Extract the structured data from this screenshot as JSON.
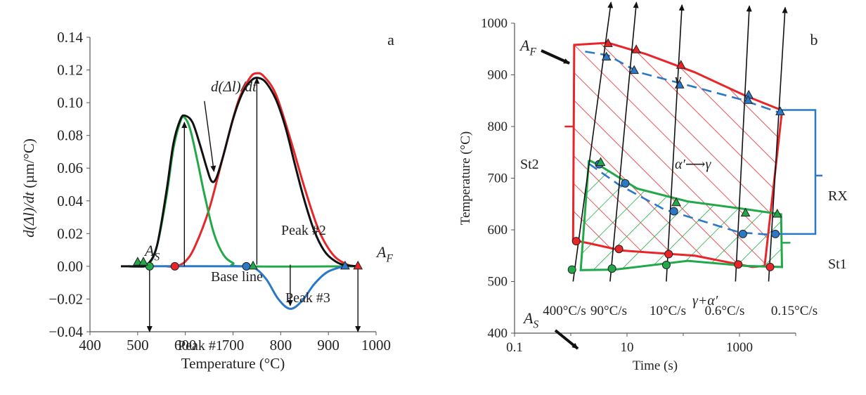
{
  "chart_data": [
    {
      "panel_label": "a",
      "type": "line",
      "xlabel": "Temperature (°C)",
      "ylabel": "d(Δl)/dt (µm/°C)",
      "xlim": [
        400,
        1000
      ],
      "ylim": [
        -0.04,
        0.14
      ],
      "xticks": [
        "400",
        "500",
        "600",
        "700",
        "800",
        "900",
        "1000"
      ],
      "yticks": [
        "−0.04",
        "−0.02",
        "0.00",
        "0.02",
        "0.04",
        "0.06",
        "0.08",
        "0.10",
        "0.12",
        "0.14"
      ],
      "series": [
        {
          "name": "d(Δl)/dt",
          "color": "#111111",
          "points": [
            [
              480,
              0
            ],
            [
              500,
              0
            ],
            [
              520,
              0.001
            ],
            [
              540,
              0.012
            ],
            [
              560,
              0.045
            ],
            [
              575,
              0.075
            ],
            [
              590,
              0.09
            ],
            [
              600,
              0.092
            ],
            [
              615,
              0.088
            ],
            [
              630,
              0.075
            ],
            [
              645,
              0.06
            ],
            [
              655,
              0.052
            ],
            [
              665,
              0.054
            ],
            [
              680,
              0.068
            ],
            [
              700,
              0.09
            ],
            [
              720,
              0.106
            ],
            [
              740,
              0.114
            ],
            [
              755,
              0.115
            ],
            [
              770,
              0.112
            ],
            [
              790,
              0.102
            ],
            [
              810,
              0.085
            ],
            [
              830,
              0.062
            ],
            [
              850,
              0.04
            ],
            [
              870,
              0.022
            ],
            [
              890,
              0.01
            ],
            [
              910,
              0.004
            ],
            [
              930,
              0.001
            ],
            [
              960,
              0
            ]
          ]
        },
        {
          "name": "Peak #1",
          "color": "#22a84a",
          "points": [
            [
              480,
              0
            ],
            [
              520,
              0.001
            ],
            [
              540,
              0.012
            ],
            [
              560,
              0.042
            ],
            [
              575,
              0.072
            ],
            [
              590,
              0.089
            ],
            [
              598,
              0.091
            ],
            [
              610,
              0.084
            ],
            [
              625,
              0.065
            ],
            [
              640,
              0.044
            ],
            [
              660,
              0.02
            ],
            [
              680,
              0.007
            ],
            [
              700,
              0.002
            ],
            [
              720,
              0
            ],
            [
              960,
              0
            ]
          ]
        },
        {
          "name": "Peak #2",
          "color": "#e8262a",
          "points": [
            [
              560,
              0
            ],
            [
              580,
              0
            ],
            [
              600,
              0.003
            ],
            [
              620,
              0.012
            ],
            [
              650,
              0.035
            ],
            [
              680,
              0.068
            ],
            [
              710,
              0.1
            ],
            [
              735,
              0.115
            ],
            [
              750,
              0.118
            ],
            [
              765,
              0.116
            ],
            [
              790,
              0.105
            ],
            [
              820,
              0.078
            ],
            [
              850,
              0.048
            ],
            [
              880,
              0.022
            ],
            [
              910,
              0.007
            ],
            [
              940,
              0.001
            ],
            [
              960,
              0
            ]
          ]
        },
        {
          "name": "Peak #3",
          "color": "#2a78c6",
          "points": [
            [
              480,
              0
            ],
            [
              720,
              0
            ],
            [
              745,
              -0.001
            ],
            [
              770,
              -0.008
            ],
            [
              795,
              -0.02
            ],
            [
              820,
              -0.026
            ],
            [
              845,
              -0.021
            ],
            [
              870,
              -0.011
            ],
            [
              895,
              -0.004
            ],
            [
              920,
              -0.001
            ],
            [
              940,
              0
            ]
          ]
        }
      ],
      "markers": [
        {
          "label": "As-circle",
          "x": 525,
          "y": 0,
          "shape": "circle",
          "color": "#22a84a"
        },
        {
          "label": "Peak2-start",
          "x": 578,
          "y": 0,
          "shape": "circle",
          "color": "#e8262a"
        },
        {
          "label": "Peak3-start",
          "x": 728,
          "y": 0,
          "shape": "circle",
          "color": "#2a78c6"
        },
        {
          "label": "Peak1-end",
          "x": 742,
          "y": 0,
          "shape": "triangle",
          "color": "#22a84a"
        },
        {
          "label": "Peak3-end",
          "x": 935,
          "y": 0,
          "shape": "triangle",
          "color": "#2a78c6"
        },
        {
          "label": "Af",
          "x": 962,
          "y": 0,
          "shape": "triangle",
          "color": "#e8262a"
        },
        {
          "label": "As-small1",
          "x": 500,
          "y": 0.002,
          "shape": "triangle",
          "color": "#22a84a"
        },
        {
          "label": "As-small2",
          "x": 512,
          "y": 0.002,
          "shape": "triangle",
          "color": "#22a84a"
        }
      ],
      "arrows": [
        {
          "from": [
            598,
            0
          ],
          "to": [
            598,
            0.088
          ]
        },
        {
          "from": [
            750,
            0.001
          ],
          "to": [
            750,
            0.115
          ]
        },
        {
          "from": [
            525,
            0
          ],
          "to": [
            525,
            -0.04
          ]
        },
        {
          "from": [
            962,
            0
          ],
          "to": [
            962,
            -0.04
          ]
        },
        {
          "from": [
            820,
            0.001
          ],
          "to": [
            820,
            -0.024
          ]
        },
        {
          "from": [
            640,
            0.101
          ],
          "to": [
            660,
            0.058
          ]
        }
      ],
      "annotations": {
        "curve_label": "d(Δl)/dt",
        "peak1": "Peak #1",
        "peak2": "Peak #2",
        "peak3": "Peak #3",
        "baseline": "Base line",
        "as": "A",
        "as_sub": "S",
        "af": "A",
        "af_sub": "F"
      }
    },
    {
      "panel_label": "b",
      "type": "line",
      "xscale": "log",
      "xlabel": "Time (s)",
      "ylabel": "Temperature (°C)",
      "xlim": [
        0.1,
        10000
      ],
      "ylim": [
        400,
        1000
      ],
      "xticks": [
        "0.1",
        "10",
        "1000"
      ],
      "yticks": [
        "400",
        "500",
        "600",
        "700",
        "800",
        "900",
        "1000"
      ],
      "heating_lines": [
        {
          "label": "400°C/s",
          "points": [
            [
              1.1,
              500
            ],
            [
              5.2,
              1035
            ]
          ]
        },
        {
          "label": "90°C/s",
          "points": [
            [
              5,
              500
            ],
            [
              14.7,
              1035
            ]
          ]
        },
        {
          "label": "10°C/s",
          "points": [
            [
              50,
              500
            ],
            [
              95,
              1030
            ]
          ]
        },
        {
          "label": "0.6°C/s",
          "points": [
            [
              850,
              500
            ],
            [
              1500,
              1028
            ]
          ]
        },
        {
          "label": "0.15°C/s",
          "points": [
            [
              3300,
              500
            ],
            [
              6500,
              1025
            ]
          ]
        }
      ],
      "regions": {
        "st2": [
          [
            1.15,
            958
          ],
          [
            4.6,
            962
          ],
          [
            22,
            940
          ],
          [
            160,
            905
          ],
          [
            1250,
            860
          ],
          [
            5500,
            832
          ],
          [
            5700,
            830
          ],
          [
            2800,
            530
          ],
          [
            1700,
            528
          ],
          [
            160,
            550
          ],
          [
            8,
            560
          ],
          [
            1.9,
            575
          ],
          [
            1.1,
            580
          ]
        ],
        "st1": [
          [
            2.1,
            735
          ],
          [
            3.2,
            725
          ],
          [
            15,
            680
          ],
          [
            120,
            655
          ],
          [
            1300,
            640
          ],
          [
            5500,
            630
          ],
          [
            5700,
            528
          ],
          [
            1300,
            530
          ],
          [
            120,
            540
          ],
          [
            6,
            523
          ],
          [
            1.5,
            522
          ],
          [
            2.1,
            735
          ]
        ]
      },
      "ticks_dashed": [
        [
          1.8,
          945
        ],
        [
          4.6,
          938
        ],
        [
          16,
          905
        ],
        [
          120,
          880
        ],
        [
          1100,
          852
        ],
        [
          5400,
          826
        ]
      ],
      "dashed_rx": [
        [
          2.1,
          728
        ],
        [
          7,
          688
        ],
        [
          45,
          640
        ],
        [
          1000,
          595
        ],
        [
          4200,
          590
        ]
      ],
      "markers": [
        {
          "x": 4.6,
          "y": 960,
          "shape": "triangle"
        },
        {
          "x": 14.6,
          "y": 948,
          "shape": "triangle"
        },
        {
          "x": 91,
          "y": 918,
          "shape": "triangle"
        },
        {
          "x": 1460,
          "y": 860,
          "shape": "triangle"
        },
        {
          "x": 5300,
          "y": 828,
          "shape": "triangle"
        },
        {
          "x": 4.3,
          "y": 934,
          "shape": "triangle"
        },
        {
          "x": 13.4,
          "y": 908,
          "shape": "triangle"
        },
        {
          "x": 86,
          "y": 880,
          "shape": "triangle"
        },
        {
          "x": 1420,
          "y": 850,
          "shape": "triangle"
        },
        {
          "x": 3.2,
          "y": 727,
          "shape": "circle"
        },
        {
          "x": 9.3,
          "y": 690,
          "shape": "circle"
        },
        {
          "x": 68,
          "y": 636,
          "shape": "circle"
        },
        {
          "x": 1150,
          "y": 592,
          "shape": "circle"
        },
        {
          "x": 4350,
          "y": 592,
          "shape": "circle"
        },
        {
          "x": 3.4,
          "y": 730,
          "shape": "triangle-g"
        },
        {
          "x": 75,
          "y": 652,
          "shape": "triangle-g"
        },
        {
          "x": 1280,
          "y": 632,
          "shape": "triangle-g"
        },
        {
          "x": 4700,
          "y": 630,
          "shape": "triangle-g"
        },
        {
          "x": 1.25,
          "y": 578,
          "shape": "circle-r"
        },
        {
          "x": 7.2,
          "y": 563,
          "shape": "circle-r"
        },
        {
          "x": 55,
          "y": 553,
          "shape": "circle-r"
        },
        {
          "x": 950,
          "y": 533,
          "shape": "circle-r"
        },
        {
          "x": 3500,
          "y": 528,
          "shape": "circle-r"
        },
        {
          "x": 1.05,
          "y": 523,
          "shape": "circle-g"
        },
        {
          "x": 5.4,
          "y": 525,
          "shape": "circle-g"
        },
        {
          "x": 50,
          "y": 532,
          "shape": "circle-g"
        }
      ],
      "annotations": {
        "af": "A",
        "af_sub": "F",
        "as": "A",
        "as_sub": "S",
        "gamma": "γ",
        "alpha_to_gamma": "α′⟶γ",
        "gamma_alpha": "γ+α′",
        "st1": "St1",
        "st2": "St2",
        "rx": "RX"
      },
      "rate_labels": [
        "400°C/s",
        "90°C/s",
        "10°C/s",
        "0.6°C/s",
        "0.15°C/s"
      ]
    }
  ]
}
